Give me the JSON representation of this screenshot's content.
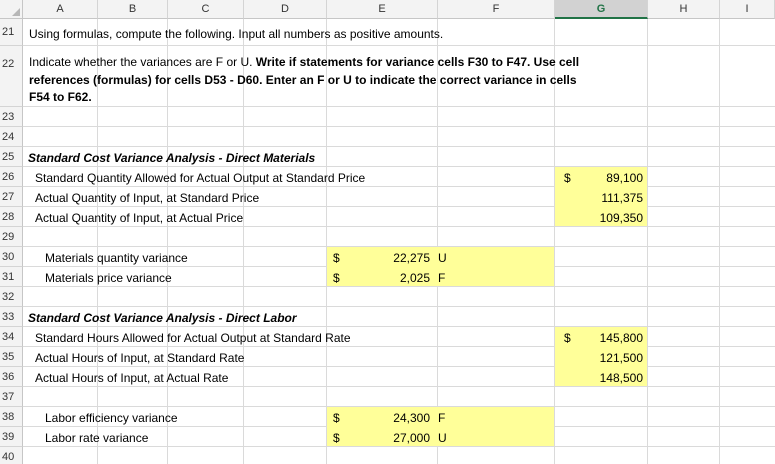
{
  "columns": [
    "A",
    "B",
    "C",
    "D",
    "E",
    "F",
    "G",
    "H",
    "I"
  ],
  "selected_column": "G",
  "rows": [
    21,
    22,
    23,
    24,
    25,
    26,
    27,
    28,
    29,
    30,
    31,
    32,
    33,
    34,
    35,
    36,
    37,
    38,
    39,
    40
  ],
  "instructions": {
    "line1": "Using formulas, compute the following.  Input all numbers as positive amounts.",
    "line2_normal": "Indicate whether the variances are F or U. ",
    "line2_bold": "Write if statements for variance cells F30 to F47. Use cell",
    "line3": "references (formulas) for cells D53 - D60. Enter an  F or U to indicate the correct variance in cells",
    "line4": "F54 to F62."
  },
  "materials": {
    "heading": "Standard Cost Variance Analysis - Direct Materials",
    "rows": [
      {
        "label": "Standard Quantity Allowed for Actual Output at Standard Price",
        "dollar": "$",
        "value": "89,100"
      },
      {
        "label": "Actual Quantity of Input, at Standard Price",
        "dollar": "",
        "value": "111,375"
      },
      {
        "label": "Actual Quantity of Input, at Actual Price",
        "dollar": "",
        "value": "109,350"
      }
    ],
    "variances": [
      {
        "label": "Materials quantity variance",
        "dollar": "$",
        "value": "22,275",
        "flag": "U"
      },
      {
        "label": "Materials price variance",
        "dollar": "$",
        "value": "2,025",
        "flag": "F"
      }
    ]
  },
  "labor": {
    "heading": "Standard Cost Variance Analysis - Direct Labor",
    "rows": [
      {
        "label": "Standard Hours Allowed for Actual Output at Standard Rate",
        "dollar": "$",
        "value": "145,800"
      },
      {
        "label": "Actual Hours of Input, at Standard Rate",
        "dollar": "",
        "value": "121,500"
      },
      {
        "label": "Actual Hours of Input, at Actual Rate",
        "dollar": "",
        "value": "148,500"
      }
    ],
    "variances": [
      {
        "label": "Labor efficiency variance",
        "dollar": "$",
        "value": "24,300",
        "flag": "F"
      },
      {
        "label": "Labor rate variance",
        "dollar": "$",
        "value": "27,000",
        "flag": "U"
      }
    ]
  }
}
